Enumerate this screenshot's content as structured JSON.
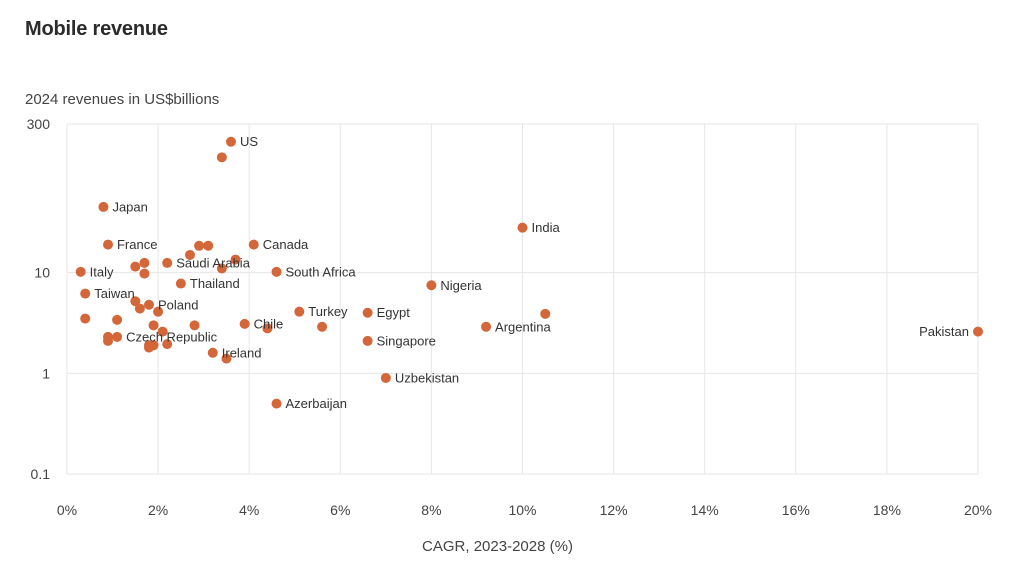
{
  "title": "Mobile revenue",
  "subtitle": "2024 revenues in US$billions",
  "chart_data": {
    "type": "scatter",
    "title": "Mobile revenue",
    "ylabel": "2024 revenues in US$billions",
    "xlabel": "CAGR, 2023-2028 (%)",
    "x_scale": "linear",
    "y_scale": "log",
    "xlim": [
      0,
      20
    ],
    "ylim": [
      0.1,
      300
    ],
    "grid": true,
    "point_color": "#d4673a",
    "x_ticks": [
      {
        "value": 0,
        "label": "0%"
      },
      {
        "value": 2,
        "label": "2%"
      },
      {
        "value": 4,
        "label": "4%"
      },
      {
        "value": 6,
        "label": "6%"
      },
      {
        "value": 8,
        "label": "8%"
      },
      {
        "value": 10,
        "label": "10%"
      },
      {
        "value": 12,
        "label": "12%"
      },
      {
        "value": 14,
        "label": "14%"
      },
      {
        "value": 16,
        "label": "16%"
      },
      {
        "value": 18,
        "label": "18%"
      },
      {
        "value": 20,
        "label": "20%"
      }
    ],
    "y_ticks": [
      {
        "value": 0.1,
        "label": "0.1"
      },
      {
        "value": 1,
        "label": "1"
      },
      {
        "value": 10,
        "label": "10"
      },
      {
        "value": 300,
        "label": "300"
      }
    ],
    "points": [
      {
        "label": "US",
        "x": 3.6,
        "y": 200
      },
      {
        "label": "",
        "x": 3.4,
        "y": 140
      },
      {
        "label": "Japan",
        "x": 0.8,
        "y": 45
      },
      {
        "label": "India",
        "x": 10.0,
        "y": 28
      },
      {
        "label": "France",
        "x": 0.9,
        "y": 19
      },
      {
        "label": "Canada",
        "x": 4.1,
        "y": 19
      },
      {
        "label": "",
        "x": 2.9,
        "y": 18.5
      },
      {
        "label": "",
        "x": 3.1,
        "y": 18.5
      },
      {
        "label": "",
        "x": 2.7,
        "y": 15
      },
      {
        "label": "",
        "x": 3.7,
        "y": 13.5
      },
      {
        "label": "Saudi Arabia",
        "x": 2.2,
        "y": 12.5
      },
      {
        "label": "",
        "x": 1.7,
        "y": 12.5
      },
      {
        "label": "",
        "x": 1.5,
        "y": 11.5
      },
      {
        "label": "",
        "x": 3.4,
        "y": 11
      },
      {
        "label": "Italy",
        "x": 0.3,
        "y": 10.2
      },
      {
        "label": "",
        "x": 1.7,
        "y": 9.8
      },
      {
        "label": "South Africa",
        "x": 4.6,
        "y": 10.2
      },
      {
        "label": "Thailand",
        "x": 2.5,
        "y": 7.8
      },
      {
        "label": "Nigeria",
        "x": 8.0,
        "y": 7.5
      },
      {
        "label": "Taiwan",
        "x": 0.4,
        "y": 6.2
      },
      {
        "label": "",
        "x": 1.5,
        "y": 5.2
      },
      {
        "label": "Poland",
        "x": 1.8,
        "y": 4.8
      },
      {
        "label": "",
        "x": 1.6,
        "y": 4.4
      },
      {
        "label": "",
        "x": 2.0,
        "y": 4.1
      },
      {
        "label": "Turkey",
        "x": 5.1,
        "y": 4.1
      },
      {
        "label": "Egypt",
        "x": 6.6,
        "y": 4.0
      },
      {
        "label": "",
        "x": 10.5,
        "y": 3.9
      },
      {
        "label": "",
        "x": 0.4,
        "y": 3.5
      },
      {
        "label": "",
        "x": 1.1,
        "y": 3.4
      },
      {
        "label": "Chile",
        "x": 3.9,
        "y": 3.1
      },
      {
        "label": "",
        "x": 1.9,
        "y": 3.0
      },
      {
        "label": "",
        "x": 2.8,
        "y": 3.0
      },
      {
        "label": "Argentina",
        "x": 9.2,
        "y": 2.9
      },
      {
        "label": "",
        "x": 5.6,
        "y": 2.9
      },
      {
        "label": "",
        "x": 4.4,
        "y": 2.8
      },
      {
        "label": "Pakistan",
        "x": 20.0,
        "y": 2.6
      },
      {
        "label": "",
        "x": 2.1,
        "y": 2.6
      },
      {
        "label": "Czech Republic",
        "x": 1.1,
        "y": 2.3
      },
      {
        "label": "",
        "x": 0.9,
        "y": 2.3
      },
      {
        "label": "",
        "x": 0.9,
        "y": 2.1
      },
      {
        "label": "Singapore",
        "x": 6.6,
        "y": 2.1
      },
      {
        "label": "",
        "x": 2.2,
        "y": 1.95
      },
      {
        "label": "",
        "x": 1.8,
        "y": 1.9
      },
      {
        "label": "",
        "x": 1.9,
        "y": 1.9
      },
      {
        "label": "",
        "x": 1.8,
        "y": 1.8
      },
      {
        "label": "Ireland",
        "x": 3.2,
        "y": 1.6
      },
      {
        "label": "",
        "x": 3.5,
        "y": 1.4
      },
      {
        "label": "Uzbekistan",
        "x": 7.0,
        "y": 0.9
      },
      {
        "label": "Azerbaijan",
        "x": 4.6,
        "y": 0.5
      }
    ]
  }
}
